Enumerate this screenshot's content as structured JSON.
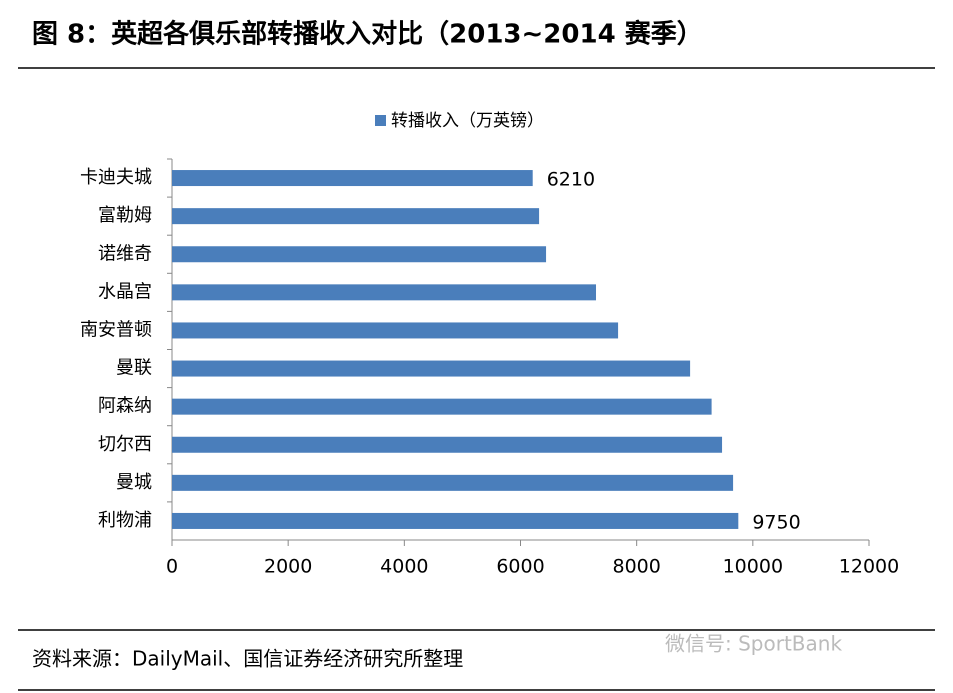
{
  "chart_data": {
    "type": "hbar",
    "title": "图 8：英超各俱乐部转播收入对比（2013~2014 赛季）",
    "categories": [
      "卡迪夫城",
      "富勒姆",
      "诺维奇",
      "水晶宫",
      "南安普顿",
      "曼联",
      "阿森纳",
      "切尔西",
      "曼城",
      "利物浦"
    ],
    "series": [
      {
        "name": "转播收入（万英镑）",
        "color": "#4a7ebb",
        "values": [
          6210,
          6320,
          6440,
          7300,
          7680,
          8920,
          9290,
          9470,
          9660,
          9750
        ],
        "value_labels": [
          "6210",
          null,
          null,
          null,
          null,
          null,
          null,
          null,
          null,
          "9750"
        ]
      }
    ],
    "xlim": [
      0,
      12000
    ],
    "xticks": [
      0,
      2000,
      4000,
      6000,
      8000,
      10000,
      12000
    ],
    "legend": "top",
    "source": "资料来源：DailyMail、国信证券经济研究所整理"
  },
  "watermark": "微信号: SportBank"
}
